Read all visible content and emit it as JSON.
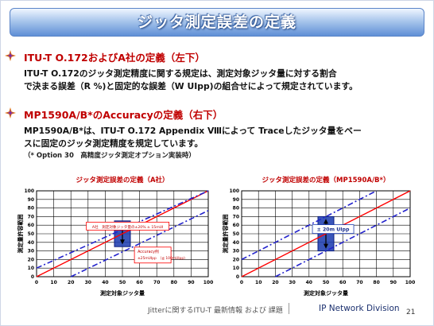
{
  "slide": {
    "title": "ジッタ測定誤差の定義",
    "sections": [
      {
        "heading": "ITU-T O.172およびA社の定義（左下）",
        "lines": [
          "ITU-T O.172のジッタ測定精度に関する規定は、測定対象ジッタ量に対する割合",
          "で決まる誤差（R %)と固定的な誤差（W UIpp)の組合せによって規定されています。"
        ]
      },
      {
        "heading": "MP1590A/B*のAccuracyの定義（右下）",
        "lines": [
          "MP1590A/B*は、ITU-T O.172 Appendix Ⅷによって Traceしたジッタ量をベー",
          "スに固定のジッタ測定精度を規定しています。"
        ],
        "note": "（* Option 30　高精度ジッタ測定オプション実装時）"
      }
    ],
    "footer": {
      "left": "Jitterに関するITU-T 最新情報 および 課題",
      "right": "IP Network Division",
      "page": "21"
    }
  },
  "colors": {
    "title_bar": "#5f8fd6",
    "heading": "#c00000",
    "line_red": "#ff0000",
    "line_blue": "#2222cc",
    "box_blue": "#1f3fb0"
  },
  "icons": {
    "bullet": "diamond-star-bullet-icon"
  },
  "chart_data": [
    {
      "type": "line",
      "title": "ジッタ測定誤差の定義（A社）",
      "xlabel": "測定対象ジッタ量",
      "ylabel": "測定量許容範囲",
      "xlim": [
        0,
        100
      ],
      "ylim": [
        0,
        100
      ],
      "ticks": [
        0,
        10,
        20,
        30,
        40,
        50,
        60,
        70,
        80,
        90,
        100
      ],
      "grid": true,
      "series": [
        {
          "x": [
            0,
            100
          ],
          "y": [
            0,
            100
          ],
          "style": "solid",
          "color": "#ff0000"
        },
        {
          "x": [
            0,
            100
          ],
          "y": [
            10,
            100
          ],
          "style": "dashdot",
          "color": "#2222cc"
        },
        {
          "x": [
            20,
            100
          ],
          "y": [
            0,
            77
          ],
          "style": "dashdot",
          "color": "#2222cc"
        }
      ],
      "error_band": {
        "x": 50,
        "low": 35,
        "high": 65
      },
      "annotations": [
        {
          "text": "A社　測定対象ジッタ量の±20% ± 15mUI"
        },
        {
          "text": "Accuracy例"
        },
        {
          "text": "±25mUIpp　（≦ 100mUIpp)"
        }
      ]
    },
    {
      "type": "line",
      "title": "ジッタ測定誤差の定義（MP1590A/B*）",
      "xlabel": "測定対象ジッタ量",
      "ylabel": "測定量許容範囲",
      "xlim": [
        0,
        100
      ],
      "ylim": [
        0,
        100
      ],
      "ticks": [
        0,
        10,
        20,
        30,
        40,
        50,
        60,
        70,
        80,
        90,
        100
      ],
      "grid": true,
      "series": [
        {
          "x": [
            0,
            100
          ],
          "y": [
            0,
            100
          ],
          "style": "solid",
          "color": "#ff0000"
        },
        {
          "x": [
            0,
            80
          ],
          "y": [
            20,
            100
          ],
          "style": "dashdot",
          "color": "#2222cc"
        },
        {
          "x": [
            20,
            100
          ],
          "y": [
            0,
            80
          ],
          "style": "dashdot",
          "color": "#2222cc"
        }
      ],
      "error_band": {
        "x": 50,
        "low": 30,
        "high": 70
      },
      "annotations": [
        {
          "text": "± 20m UIpp"
        }
      ]
    }
  ]
}
